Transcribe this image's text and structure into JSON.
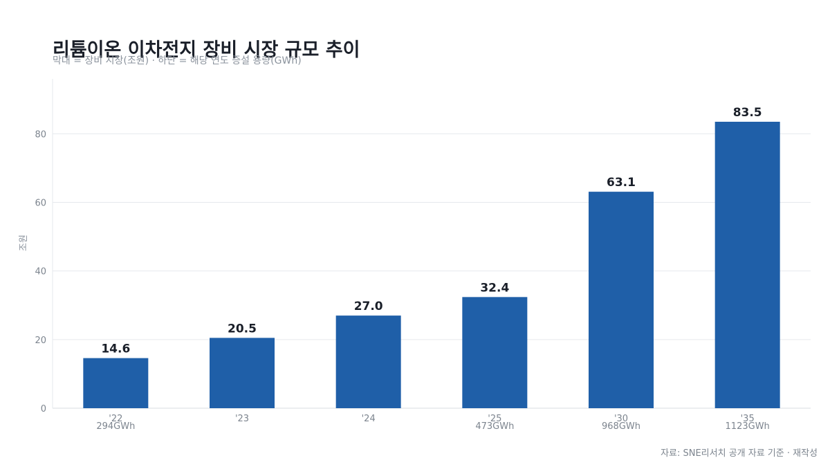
{
  "chart_data": {
    "type": "bar",
    "title": "리튬이온 이차전지 장비 시장 규모 추이",
    "subtitle": "막대 = 장비 시장(조원) · 하단 = 해당 연도 증설 용량(GWh)",
    "ylabel": "조원",
    "xlabel": "",
    "categories": [
      "'22",
      "'23",
      "'24",
      "'25",
      "'30",
      "'35"
    ],
    "values": [
      14.6,
      20.5,
      27.0,
      32.4,
      63.1,
      83.5
    ],
    "value_labels": [
      "14.6",
      "20.5",
      "27.0",
      "32.4",
      "63.1",
      "83.5"
    ],
    "capacity_labels": [
      "294GWh",
      "",
      "",
      "473GWh",
      "968GWh",
      "1123GWh"
    ],
    "ylim": [
      0,
      96
    ],
    "yticks": [
      0,
      20,
      40,
      60,
      80
    ],
    "grid": true,
    "bar_color": "#1f5fa8",
    "source": "자료: SNE리서치 공개 자료 기준 · 재작성"
  }
}
